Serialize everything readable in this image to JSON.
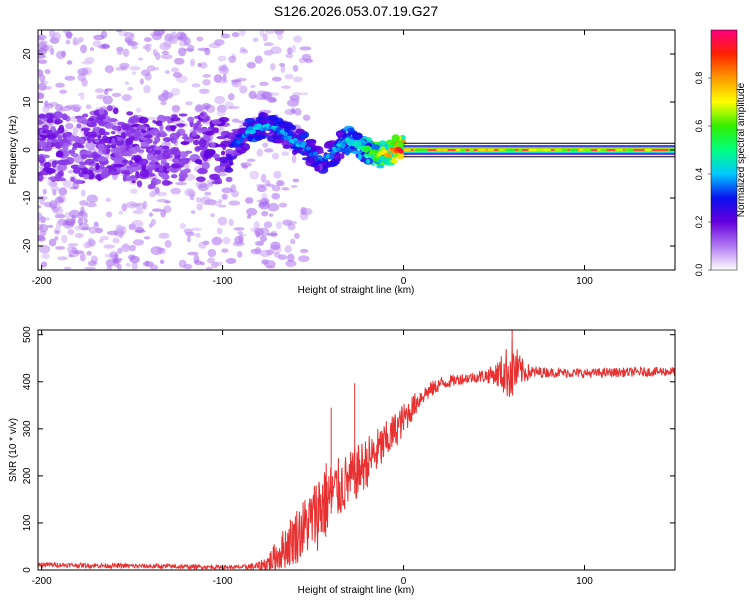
{
  "figure_title": "S126.2026.053.07.19.G27",
  "chart_data": [
    {
      "type": "heatmap",
      "xlabel": "Height of straight line (km)",
      "ylabel": "Frequency (Hz)",
      "xlim": [
        -202,
        150
      ],
      "ylim": [
        -25,
        25
      ],
      "xticks": [
        -200,
        -100,
        0,
        100
      ],
      "yticks": [
        20,
        10,
        0,
        -10,
        -20
      ],
      "colorbar": {
        "label": "Normalized spectral amplitude",
        "range": [
          0,
          1
        ],
        "ticks": [
          "0.0",
          "0.2",
          "0.4",
          "0.6",
          "0.8"
        ],
        "colors": [
          "#ffffff",
          "#b077f0",
          "#6600dd",
          "#0a10ee",
          "#00c8ff",
          "#00ff7f",
          "#33ee00",
          "#ffff00",
          "#ff9900",
          "#ff2200",
          "#ff0080"
        ]
      },
      "frequency_track": {
        "x": [
          -200,
          -180,
          -160,
          -140,
          -120,
          -100,
          -90,
          -85,
          -80,
          -75,
          -70,
          -65,
          -60,
          -55,
          -50,
          -45,
          -40,
          -35,
          -30,
          -25,
          -20,
          -15,
          -10,
          -5,
          0,
          150
        ],
        "y": [
          1,
          0,
          2,
          -1,
          1,
          0,
          2,
          4,
          5,
          5,
          4,
          3,
          2,
          1,
          -1,
          -2,
          -1,
          1,
          2,
          1,
          0,
          -1,
          -1,
          0,
          0,
          0
        ],
        "level": [
          0.2,
          0.2,
          0.2,
          0.2,
          0.2,
          0.22,
          0.3,
          0.35,
          0.35,
          0.35,
          0.33,
          0.3,
          0.35,
          0.32,
          0.28,
          0.3,
          0.33,
          0.35,
          0.38,
          0.42,
          0.5,
          0.6,
          0.7,
          0.8,
          0.9,
          0.92
        ]
      }
    },
    {
      "type": "line",
      "xlabel": "Height of straight line (km)",
      "ylabel": "SNR (10 * v/v)",
      "xlim": [
        -202,
        150
      ],
      "ylim": [
        0,
        510
      ],
      "xticks": [
        -200,
        -100,
        0,
        100
      ],
      "yticks": [
        0,
        100,
        200,
        300,
        400,
        500
      ],
      "series": [
        {
          "name": "SNR",
          "color": "#e83030",
          "x": [
            -202,
            -180,
            -160,
            -140,
            -120,
            -100,
            -90,
            -80,
            -75,
            -70,
            -60,
            -50,
            -45,
            -40,
            -30,
            -20,
            -10,
            0,
            10,
            20,
            30,
            40,
            50,
            55,
            60,
            65,
            70,
            80,
            100,
            120,
            150
          ],
          "y": [
            12,
            10,
            9,
            8,
            7,
            6,
            6,
            8,
            15,
            30,
            70,
            110,
            140,
            160,
            190,
            230,
            270,
            320,
            370,
            395,
            405,
            410,
            415,
            418,
            425,
            422,
            420,
            420,
            418,
            420,
            422
          ],
          "noise": [
            5,
            5,
            5,
            5,
            5,
            4,
            4,
            10,
            20,
            35,
            60,
            70,
            100,
            70,
            60,
            55,
            45,
            35,
            20,
            15,
            12,
            12,
            20,
            45,
            70,
            30,
            15,
            10,
            10,
            10,
            10
          ],
          "spikes": [
            {
              "x": -40,
              "y": 345
            },
            {
              "x": -27,
              "y": 397
            },
            {
              "x": 60,
              "y": 510
            }
          ]
        }
      ]
    }
  ]
}
